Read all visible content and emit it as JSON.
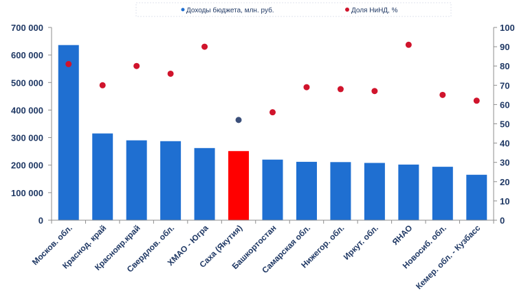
{
  "chart_data": {
    "type": "bar",
    "categories": [
      "Москов. обл.",
      "Краснод. край",
      "Краснояр.край",
      "Свердлов. обл.",
      "ХМАО - Югра",
      "Саха (Якутия)",
      "Башкортостан",
      "Самарская обл.",
      "Нижегор. обл.",
      "Иркут. обл.",
      "ЯНАО",
      "Новосиб. обл.",
      "Кемер. обл. - Кузбасс"
    ],
    "series": [
      {
        "name": "Доходы бюджета, млн. руб.",
        "type": "bar",
        "axis": "left",
        "values": [
          636000,
          315000,
          290000,
          287000,
          262000,
          251000,
          220000,
          212000,
          211000,
          208000,
          202000,
          194000,
          165000
        ],
        "color": "#1f6fd1",
        "highlight_index": 5,
        "highlight_color": "#ff0000"
      },
      {
        "name": "Доля НиНД, %",
        "type": "scatter",
        "axis": "right",
        "values": [
          81,
          70,
          80,
          76,
          90,
          52,
          56,
          69,
          68,
          67,
          91,
          65,
          62
        ],
        "color": "#d0142c",
        "highlight_index": 5,
        "highlight_color": "#3b4f7a"
      }
    ],
    "y_left": {
      "ylim": [
        0,
        700000
      ],
      "ticks": [
        "0",
        "100 000",
        "200 000",
        "300 000",
        "400 000",
        "500 000",
        "600 000",
        "700 000"
      ]
    },
    "y_right": {
      "ylim": [
        0,
        100
      ],
      "ticks": [
        "0",
        "10",
        "20",
        "30",
        "40",
        "50",
        "60",
        "70",
        "80",
        "90",
        "100"
      ]
    },
    "legend_position": "top-center",
    "grid": false
  }
}
